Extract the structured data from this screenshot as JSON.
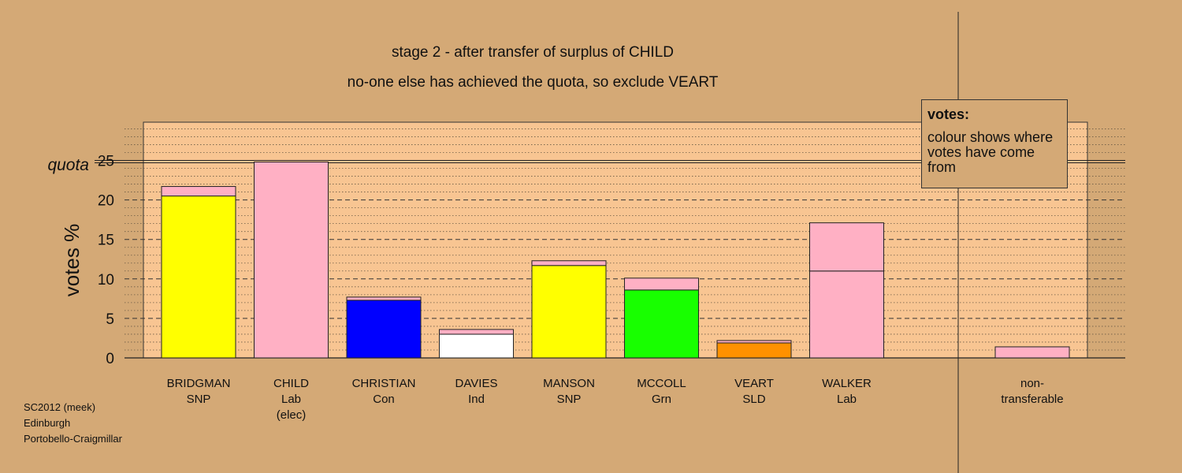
{
  "title": "stage 2 - after transfer of surplus of CHILD",
  "subtitle": "no-one else has achieved the quota, so exclude VEART",
  "legend": {
    "heading": "votes:",
    "body": "colour shows where votes have come from"
  },
  "footer": [
    "SC2012 (meek)",
    "Edinburgh",
    "Portobello-Craigmillar"
  ],
  "colors": {
    "background": "#d4a976",
    "plot_area": "#f8c592",
    "SNP": "#ffff00",
    "Lab": "#ffb0c4",
    "Con": "#0000ff",
    "Ind": "#ffffff",
    "Grn": "#18ff00",
    "SLD": "#ff9100"
  },
  "chart_data": {
    "type": "bar",
    "stacked": true,
    "title": "stage 2 - after transfer of surplus of CHILD",
    "subtitle": "no-one else has achieved the quota, so exclude VEART",
    "ylabel": "votes %",
    "ylim": [
      0,
      30
    ],
    "yticks": [
      0,
      5,
      10,
      15,
      20,
      25
    ],
    "quota": 24.9,
    "quota_label": "quota",
    "grid": true,
    "legend_position": "top-right",
    "categories": [
      {
        "name": "BRIDGMAN",
        "party": "SNP",
        "status": ""
      },
      {
        "name": "CHILD",
        "party": "Lab",
        "status": "(elec)"
      },
      {
        "name": "CHRISTIAN",
        "party": "Con",
        "status": ""
      },
      {
        "name": "DAVIES",
        "party": "Ind",
        "status": ""
      },
      {
        "name": "MANSON",
        "party": "SNP",
        "status": ""
      },
      {
        "name": "MCCOLL",
        "party": "Grn",
        "status": ""
      },
      {
        "name": "VEART",
        "party": "SLD",
        "status": ""
      },
      {
        "name": "WALKER",
        "party": "Lab",
        "status": ""
      }
    ],
    "bars": [
      {
        "segments": [
          {
            "color": "#ffff00",
            "value": 20.5
          },
          {
            "color": "#ffb0c4",
            "value": 1.2
          }
        ]
      },
      {
        "segments": [
          {
            "color": "#ffb0c4",
            "value": 24.8
          }
        ]
      },
      {
        "segments": [
          {
            "color": "#0000ff",
            "value": 7.3
          },
          {
            "color": "#ffb0c4",
            "value": 0.4
          }
        ]
      },
      {
        "segments": [
          {
            "color": "#ffffff",
            "value": 3.0
          },
          {
            "color": "#ffb0c4",
            "value": 0.6
          }
        ]
      },
      {
        "segments": [
          {
            "color": "#ffff00",
            "value": 11.7
          },
          {
            "color": "#ffb0c4",
            "value": 0.6
          }
        ]
      },
      {
        "segments": [
          {
            "color": "#18ff00",
            "value": 8.6
          },
          {
            "color": "#ffb0c4",
            "value": 1.5
          }
        ]
      },
      {
        "segments": [
          {
            "color": "#ff9100",
            "value": 1.9
          },
          {
            "color": "#ffb0c4",
            "value": 0.3
          }
        ]
      },
      {
        "segments": [
          {
            "color": "#ffb0c4",
            "value": 11.0
          },
          {
            "color": "#ffb0c4",
            "value": 6.1
          }
        ]
      }
    ],
    "nontransferable": {
      "label": "non-\ntransferable",
      "value": 1.4,
      "color": "#ffb0c4"
    }
  }
}
